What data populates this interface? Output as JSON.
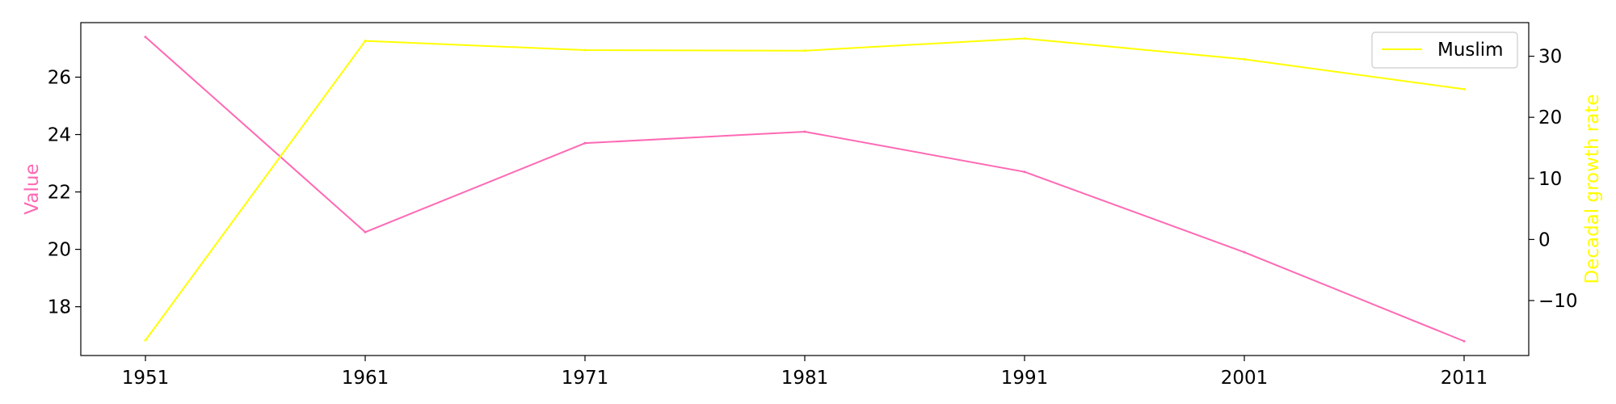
{
  "chart_data": {
    "type": "line",
    "dual_axis": true,
    "categories": [
      "1951",
      "1961",
      "1971",
      "1981",
      "1991",
      "2001",
      "2011"
    ],
    "series": [
      {
        "name": "Value",
        "axis": "left",
        "color": "#ff69b4",
        "values": [
          27.4,
          20.6,
          23.7,
          24.1,
          22.7,
          19.9,
          16.8
        ]
      },
      {
        "name": "Muslim",
        "axis": "right",
        "color": "#ffff00",
        "values": [
          -16.5,
          32.5,
          31.0,
          30.9,
          32.9,
          29.5,
          24.6
        ]
      }
    ],
    "xlabel": "",
    "ylabel_left": "Value",
    "ylabel_right": "Decadal growth rate",
    "ylim_left": [
      16.3,
      27.9
    ],
    "ylim_right": [
      -19.0,
      35.5
    ],
    "yticks_left": [
      18,
      20,
      22,
      24,
      26
    ],
    "yticks_right": [
      -10,
      0,
      10,
      20,
      30
    ],
    "legend": {
      "position": "top-right",
      "entries": [
        "Muslim"
      ]
    },
    "grid": false
  }
}
